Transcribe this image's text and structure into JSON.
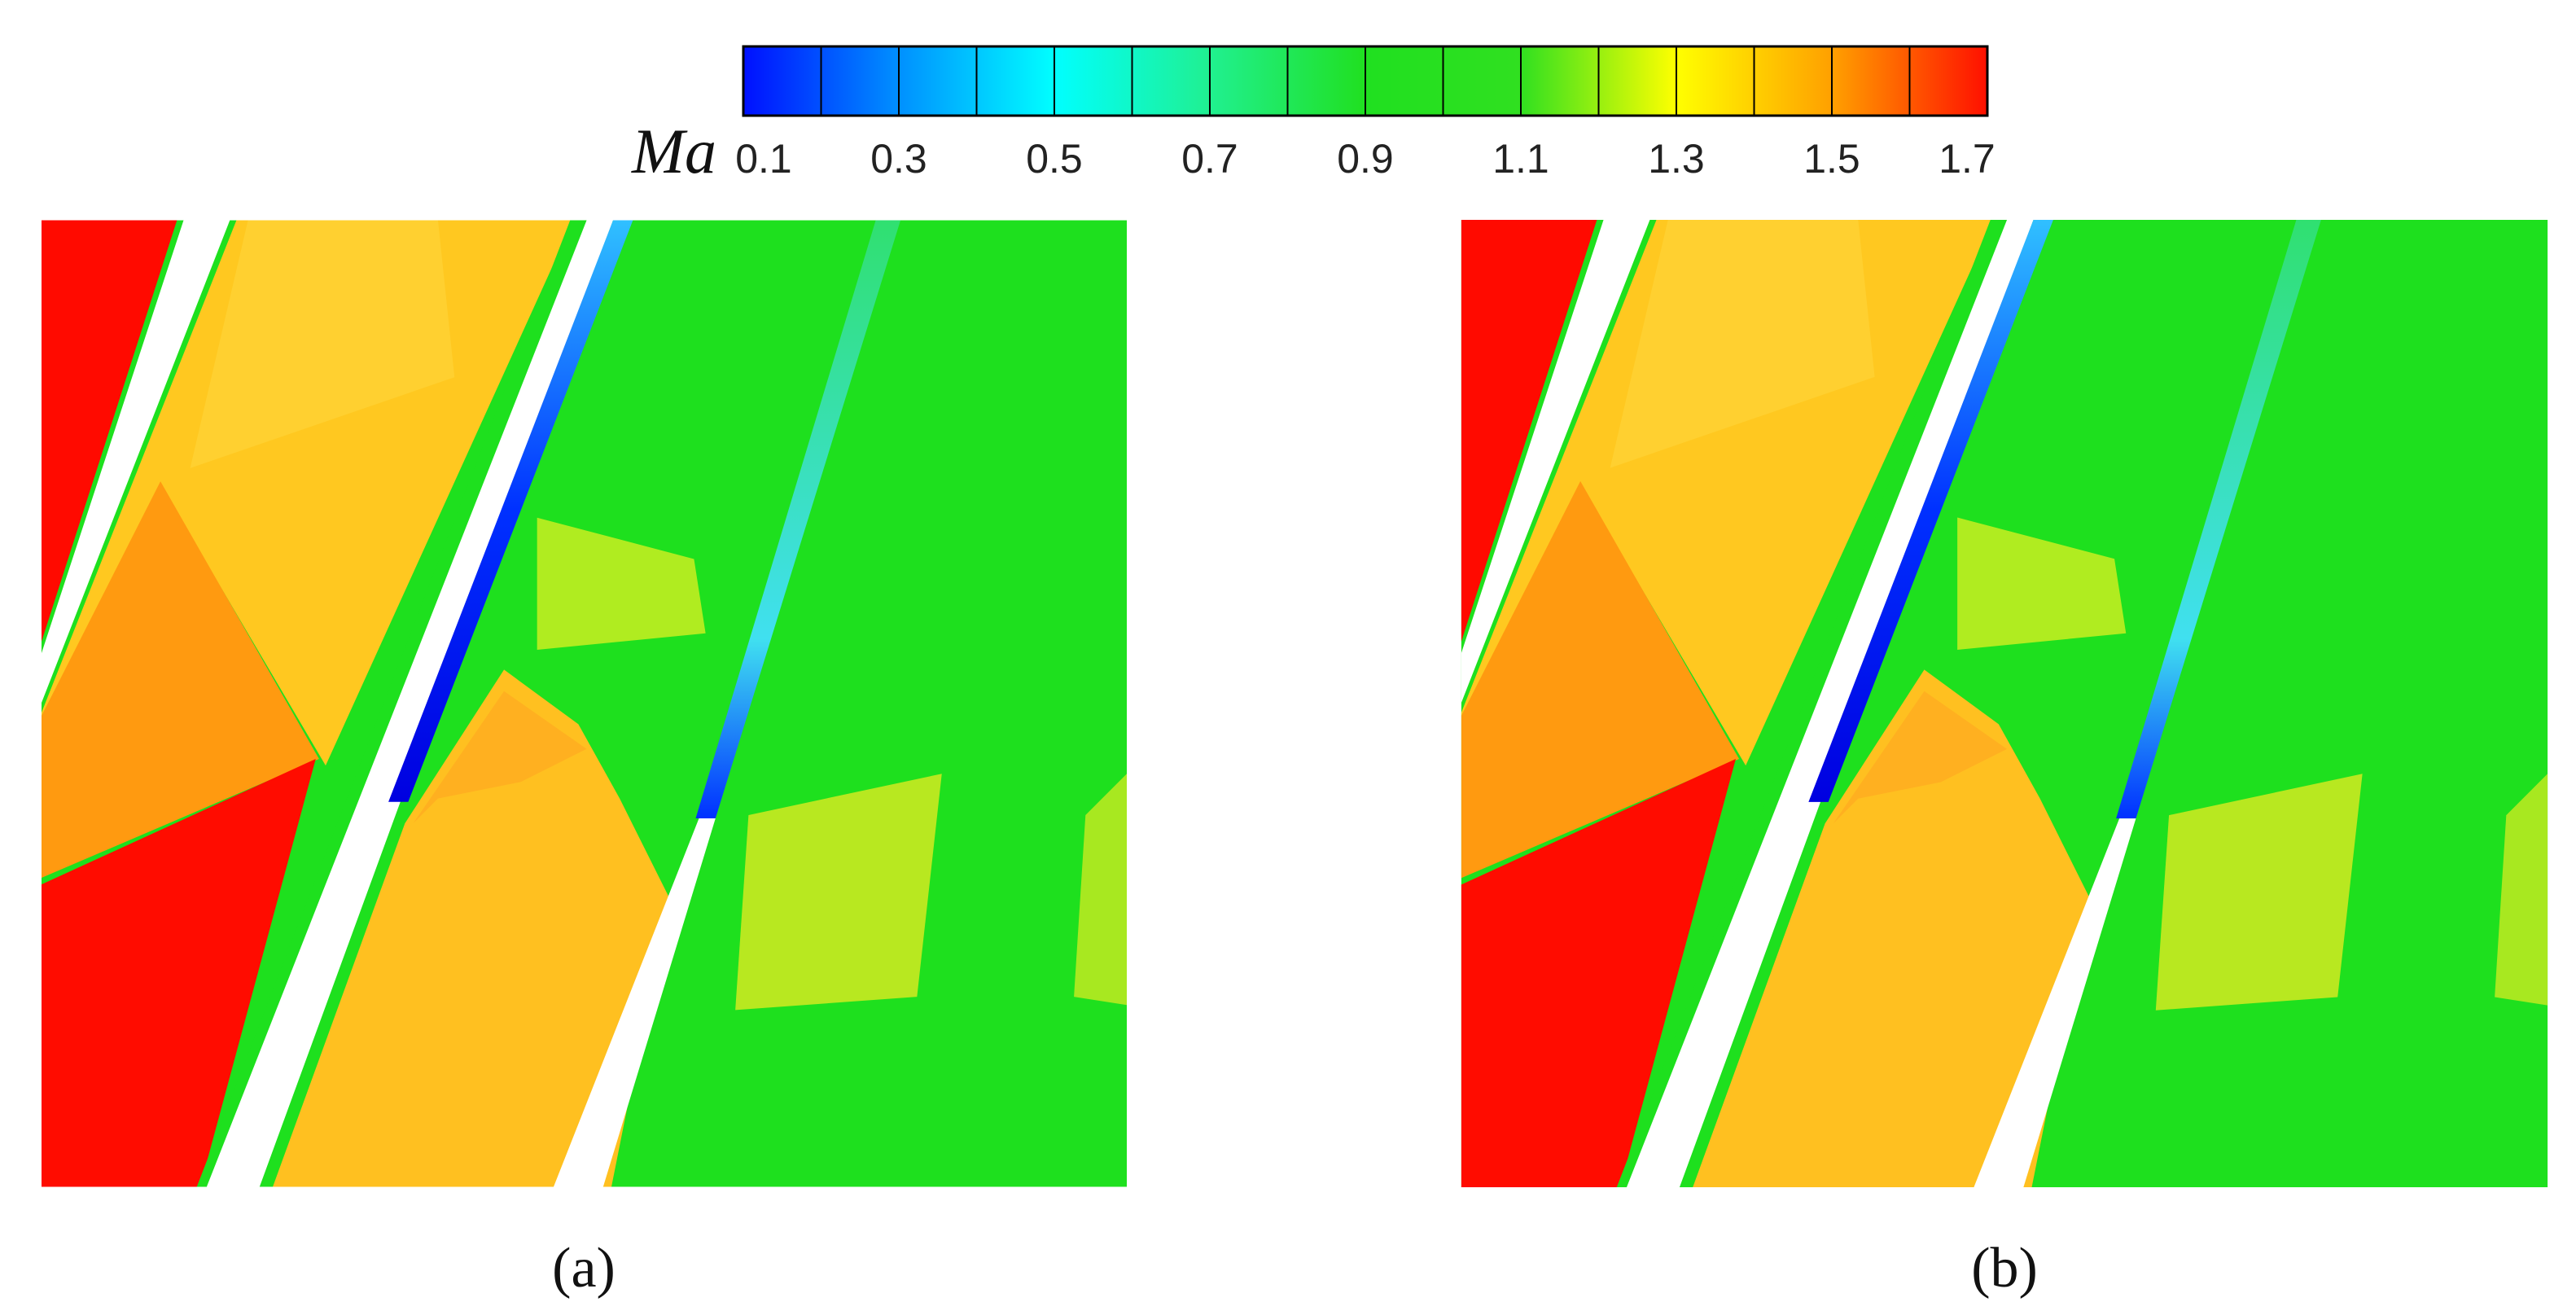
{
  "colorbar": {
    "label": "Ma",
    "range": [
      0.1,
      1.7
    ],
    "ticks": [
      0.1,
      0.3,
      0.5,
      0.7,
      0.9,
      1.1,
      1.3,
      1.5,
      1.7
    ],
    "colors": [
      "#0010ff",
      "#0090ff",
      "#00ffff",
      "#20f090",
      "#20e020",
      "#30e020",
      "#ffff00",
      "#ffa000",
      "#ff1000"
    ]
  },
  "panels": [
    {
      "label": "(a)"
    },
    {
      "label": "(b)"
    }
  ]
}
